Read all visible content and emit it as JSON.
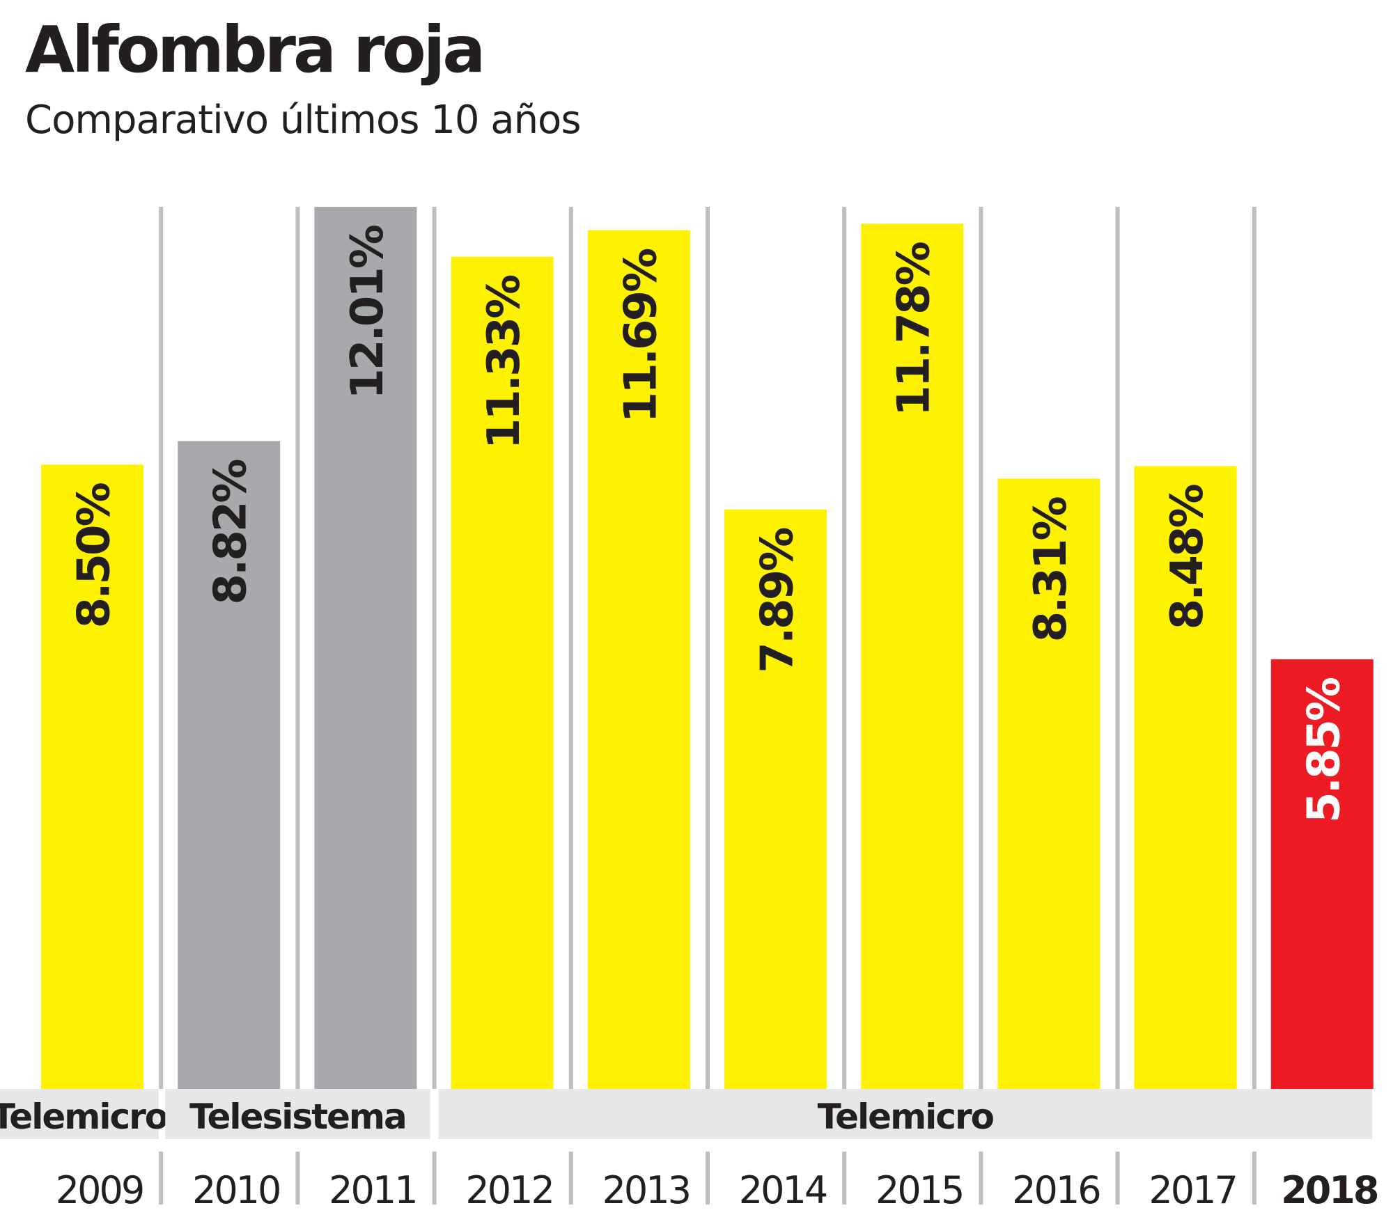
{
  "chart_data": {
    "type": "bar",
    "title": "Alfombra roja",
    "subtitle": "Comparativo últimos 10 años",
    "categories": [
      "2009",
      "2010",
      "2011",
      "2012",
      "2013",
      "2014",
      "2015",
      "2016",
      "2017",
      "2018"
    ],
    "values": [
      8.5,
      8.82,
      12.01,
      11.33,
      11.69,
      7.89,
      11.78,
      8.31,
      8.48,
      5.85
    ],
    "data_labels": [
      "8.50%",
      "8.82%",
      "12.01%",
      "11.33%",
      "11.69%",
      "7.89%",
      "11.78%",
      "8.31%",
      "8.48%",
      "5.85%"
    ],
    "bar_colors": [
      "#fff200",
      "#a7a9ac",
      "#a7a9ac",
      "#fff200",
      "#fff200",
      "#fff200",
      "#fff200",
      "#fff200",
      "#fff200",
      "#ed1c24"
    ],
    "label_colors": [
      "#231f20",
      "#231f20",
      "#231f20",
      "#231f20",
      "#231f20",
      "#231f20",
      "#231f20",
      "#231f20",
      "#231f20",
      "#ffffff"
    ],
    "highlight_category": "2018",
    "groups": [
      {
        "label": "Telemicro",
        "from": "2009",
        "to": "2009"
      },
      {
        "label": "Telesistema",
        "from": "2010",
        "to": "2011"
      },
      {
        "label": "Telemicro",
        "from": "2012",
        "to": "2018"
      }
    ],
    "ylim": [
      0,
      12.01
    ],
    "grid": false,
    "legend": "none"
  }
}
